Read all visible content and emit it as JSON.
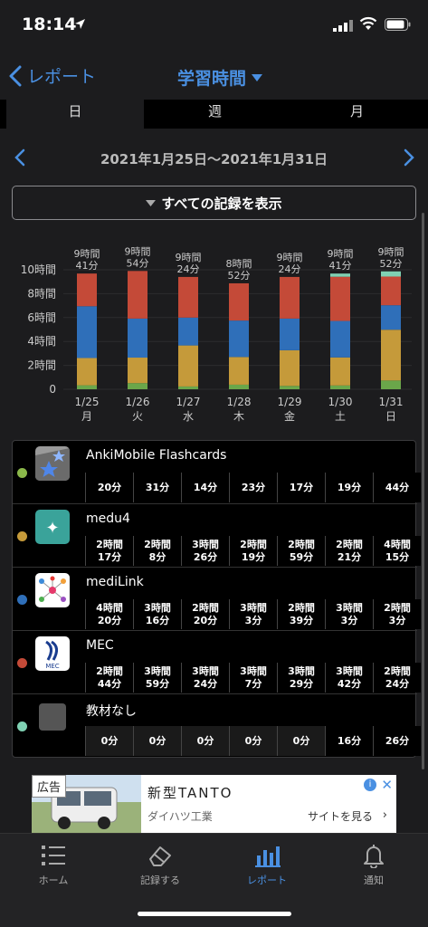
{
  "status_bar": {
    "time": "18:14"
  },
  "nav": {
    "back_label": "レポート",
    "title": "学習時間"
  },
  "segments": [
    "日",
    "週",
    "月"
  ],
  "date_range": "2021年1月25日〜2021年1月31日",
  "show_all_label": "すべての記録を表示",
  "chart_data": {
    "type": "bar",
    "stacked": true,
    "categories": [
      "1/25 月",
      "1/26 火",
      "1/27 水",
      "1/28 木",
      "1/29 金",
      "1/30 土",
      "1/31 日"
    ],
    "x_day": [
      "1/25",
      "1/26",
      "1/27",
      "1/28",
      "1/29",
      "1/30",
      "1/31"
    ],
    "x_weekday": [
      "月",
      "火",
      "水",
      "木",
      "金",
      "土",
      "日"
    ],
    "totals_label_line1": [
      "9時間",
      "9時間",
      "9時間",
      "8時間",
      "9時間",
      "9時間",
      "9時間"
    ],
    "totals_label_line2": [
      "41分",
      "54分",
      "24分",
      "52分",
      "24分",
      "41分",
      "52分"
    ],
    "y_ticks": [
      "0",
      "2時間",
      "4時間",
      "6時間",
      "8時間",
      "10時間"
    ],
    "ylim": [
      0,
      10
    ],
    "series": [
      {
        "name": "AnkiMobile Flashcards",
        "color": "#6aa64a",
        "values_min": [
          20,
          31,
          14,
          23,
          17,
          19,
          44
        ]
      },
      {
        "name": "medu4",
        "color": "#c59a3a",
        "values_min": [
          137,
          128,
          206,
          139,
          179,
          141,
          255
        ]
      },
      {
        "name": "mediLink",
        "color": "#2f6fb9",
        "values_min": [
          260,
          196,
          140,
          183,
          159,
          183,
          123
        ]
      },
      {
        "name": "MEC",
        "color": "#c44a38",
        "values_min": [
          164,
          239,
          204,
          187,
          209,
          222,
          144
        ]
      },
      {
        "name": "教材なし",
        "color": "#7fd1b3",
        "values_min": [
          0,
          0,
          0,
          0,
          0,
          16,
          26
        ]
      }
    ]
  },
  "rows": [
    {
      "name": "AnkiMobile Flashcards",
      "color": "#8bb84a",
      "icon": "anki-star-icon",
      "cells": [
        [
          "20分"
        ],
        [
          "31分"
        ],
        [
          "14分"
        ],
        [
          "23分"
        ],
        [
          "17分"
        ],
        [
          "19分"
        ],
        [
          "44分"
        ]
      ]
    },
    {
      "name": "medu4",
      "color": "#c59a3a",
      "icon": "medu4-logo-icon",
      "cells": [
        [
          "2時間",
          "17分"
        ],
        [
          "2時間",
          "8分"
        ],
        [
          "3時間",
          "26分"
        ],
        [
          "2時間",
          "19分"
        ],
        [
          "2時間",
          "59分"
        ],
        [
          "2時間",
          "21分"
        ],
        [
          "4時間",
          "15分"
        ]
      ]
    },
    {
      "name": "mediLink",
      "color": "#2f6fb9",
      "icon": "medilink-network-icon",
      "cells": [
        [
          "4時間",
          "20分"
        ],
        [
          "3時間",
          "16分"
        ],
        [
          "2時間",
          "20分"
        ],
        [
          "3時間",
          "3分"
        ],
        [
          "2時間",
          "39分"
        ],
        [
          "3時間",
          "3分"
        ],
        [
          "2時間",
          "3分"
        ]
      ]
    },
    {
      "name": "MEC",
      "color": "#c44a38",
      "icon": "mec-logo-icon",
      "cells": [
        [
          "2時間",
          "44分"
        ],
        [
          "3時間",
          "59分"
        ],
        [
          "3時間",
          "24分"
        ],
        [
          "3時間",
          "7分"
        ],
        [
          "3時間",
          "29分"
        ],
        [
          "3時間",
          "42分"
        ],
        [
          "2時間",
          "24分"
        ]
      ]
    },
    {
      "name": "教材なし",
      "color": "#7fd1b3",
      "icon": "no-material-icon",
      "cells": [
        [
          "0分"
        ],
        [
          "0分"
        ],
        [
          "0分"
        ],
        [
          "0分"
        ],
        [
          "0分"
        ],
        [
          "16分"
        ],
        [
          "26分"
        ]
      ]
    }
  ],
  "ad": {
    "badge": "広告",
    "title": "新型TANTO",
    "advertiser": "ダイハツ工業",
    "cta": "サイトを見る"
  },
  "tabs": [
    {
      "label": "ホーム",
      "icon": "list-icon"
    },
    {
      "label": "記録する",
      "icon": "eraser-icon"
    },
    {
      "label": "レポート",
      "icon": "bar-chart-icon",
      "active": true
    },
    {
      "label": "通知",
      "icon": "bell-icon"
    }
  ]
}
